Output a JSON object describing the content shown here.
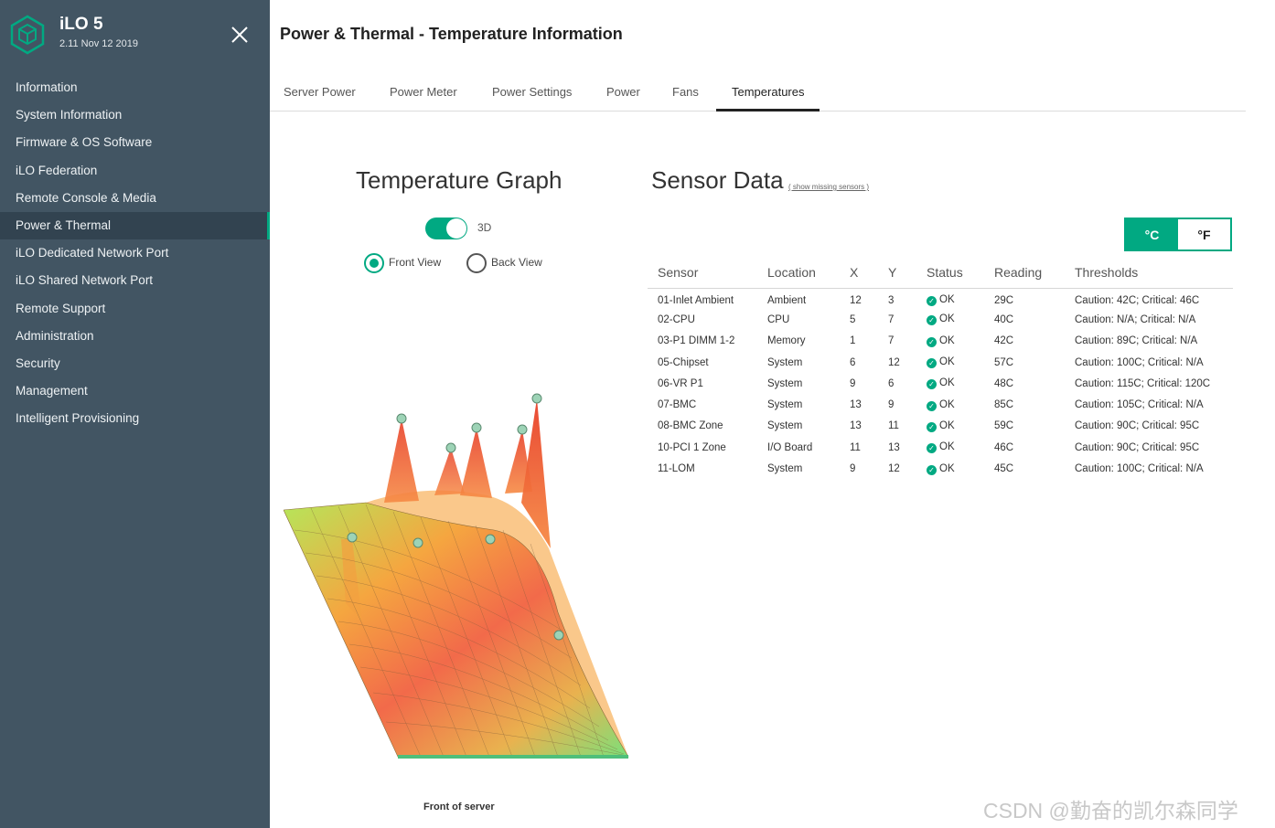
{
  "app": {
    "name": "iLO 5",
    "version": "2.11 Nov 12 2019"
  },
  "sidebar": {
    "items": [
      {
        "label": "Information",
        "active": false
      },
      {
        "label": "System Information",
        "active": false
      },
      {
        "label": "Firmware & OS Software",
        "active": false
      },
      {
        "label": "iLO Federation",
        "active": false
      },
      {
        "label": "Remote Console & Media",
        "active": false
      },
      {
        "label": "Power & Thermal",
        "active": true
      },
      {
        "label": "iLO Dedicated Network Port",
        "active": false
      },
      {
        "label": "iLO Shared Network Port",
        "active": false
      },
      {
        "label": "Remote Support",
        "active": false
      },
      {
        "label": "Administration",
        "active": false
      },
      {
        "label": "Security",
        "active": false
      },
      {
        "label": "Management",
        "active": false
      },
      {
        "label": "Intelligent Provisioning",
        "active": false
      }
    ]
  },
  "page": {
    "title": "Power & Thermal - Temperature Information"
  },
  "tabs": [
    {
      "label": "Server Power",
      "active": false
    },
    {
      "label": "Power Meter",
      "active": false
    },
    {
      "label": "Power Settings",
      "active": false
    },
    {
      "label": "Power",
      "active": false
    },
    {
      "label": "Fans",
      "active": false
    },
    {
      "label": "Temperatures",
      "active": true
    }
  ],
  "graph_panel": {
    "title": "Temperature Graph",
    "toggle_label": "3D",
    "toggle_on": true,
    "front_view_label": "Front View",
    "back_view_label": "Back View",
    "selected_view": "front",
    "caption": "Front of server"
  },
  "sensor_panel": {
    "title": "Sensor Data",
    "missing_link": "( show missing sensors )",
    "unit_c": "°C",
    "unit_f": "°F",
    "selected_unit": "C",
    "columns": [
      "Sensor",
      "Location",
      "X",
      "Y",
      "Status",
      "Reading",
      "Thresholds"
    ],
    "rows": [
      {
        "sensor": "01-Inlet Ambient",
        "location": "Ambient",
        "x": "12",
        "y": "3",
        "status": "OK",
        "reading": "29C",
        "thresholds": "Caution: 42C; Critical: 46C"
      },
      {
        "sensor": "02-CPU",
        "location": "CPU",
        "x": "5",
        "y": "7",
        "status": "OK",
        "reading": "40C",
        "thresholds": "Caution: N/A; Critical: N/A"
      },
      {
        "sensor": "03-P1 DIMM 1-2",
        "location": "Memory",
        "x": "1",
        "y": "7",
        "status": "OK",
        "reading": "42C",
        "thresholds": "Caution: 89C; Critical: N/A"
      },
      {
        "sensor": "05-Chipset",
        "location": "System",
        "x": "6",
        "y": "12",
        "status": "OK",
        "reading": "57C",
        "thresholds": "Caution: 100C; Critical: N/A"
      },
      {
        "sensor": "06-VR P1",
        "location": "System",
        "x": "9",
        "y": "6",
        "status": "OK",
        "reading": "48C",
        "thresholds": "Caution: 115C; Critical: 120C"
      },
      {
        "sensor": "07-BMC",
        "location": "System",
        "x": "13",
        "y": "9",
        "status": "OK",
        "reading": "85C",
        "thresholds": "Caution: 105C; Critical: N/A"
      },
      {
        "sensor": "08-BMC Zone",
        "location": "System",
        "x": "13",
        "y": "11",
        "status": "OK",
        "reading": "59C",
        "thresholds": "Caution: 90C; Critical: 95C"
      },
      {
        "sensor": "10-PCI 1 Zone",
        "location": "I/O Board",
        "x": "11",
        "y": "13",
        "status": "OK",
        "reading": "46C",
        "thresholds": "Caution: 90C; Critical: 95C"
      },
      {
        "sensor": "11-LOM",
        "location": "System",
        "x": "9",
        "y": "12",
        "status": "OK",
        "reading": "45C",
        "thresholds": "Caution: 100C; Critical: N/A"
      }
    ]
  },
  "watermark": "CSDN @勤奋的凯尔森同学",
  "colors": {
    "sidebar_bg": "#425563",
    "sidebar_active": "#324350",
    "accent": "#01a982"
  },
  "icons": {
    "logo": "hexagon-logo-icon",
    "close": "close-icon",
    "ok": "check-circle-icon"
  }
}
